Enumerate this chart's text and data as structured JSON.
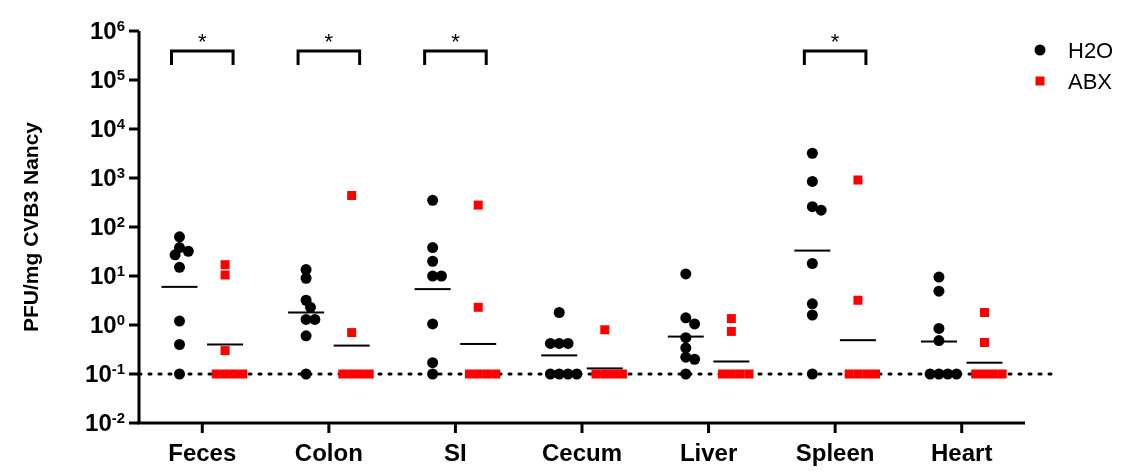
{
  "chart_data": {
    "type": "scatter",
    "ylabel": "PFU/mg CVB3 Nancy",
    "categories": [
      "Feces",
      "Colon",
      "SI",
      "Cecum",
      "Liver",
      "Spleen",
      "Heart"
    ],
    "log": "y",
    "ylim": [
      0.01,
      1000000
    ],
    "yticks": [
      {
        "value": 0.01,
        "label": "10$^{-2}$"
      },
      {
        "value": 0.1,
        "label": "10$^{-1}$"
      },
      {
        "value": 1,
        "label": "10$^{0}$"
      },
      {
        "value": 10,
        "label": "10$^{1}$"
      },
      {
        "value": 100,
        "label": "10$^{2}$"
      },
      {
        "value": 1000,
        "label": "10$^{3}$"
      },
      {
        "value": 10000,
        "label": "10$^{4}$"
      },
      {
        "value": 100000,
        "label": "10$^{5}$"
      },
      {
        "value": 1000000,
        "label": "10$^{6}$"
      }
    ],
    "grid": false,
    "legend": "top right",
    "series": [
      {
        "name": "H2O",
        "color": "#000000",
        "marker": "circle",
        "x": [
          "Feces",
          "Feces",
          "Feces",
          "Feces",
          "Feces",
          "Feces",
          "Feces",
          "Feces",
          "Colon",
          "Colon",
          "Colon",
          "Colon",
          "Colon",
          "Colon",
          "Colon",
          "Colon",
          "SI",
          "SI",
          "SI",
          "SI",
          "SI",
          "SI",
          "SI",
          "SI",
          "Cecum",
          "Cecum",
          "Cecum",
          "Cecum",
          "Cecum",
          "Cecum",
          "Cecum",
          "Cecum",
          "Liver",
          "Liver",
          "Liver",
          "Liver",
          "Liver",
          "Liver",
          "Liver",
          "Liver",
          "Spleen",
          "Spleen",
          "Spleen",
          "Spleen",
          "Spleen",
          "Spleen",
          "Spleen",
          "Spleen",
          "Heart",
          "Heart",
          "Heart",
          "Heart",
          "Heart",
          "Heart",
          "Heart",
          "Heart"
        ],
        "values": [
          63,
          38,
          32,
          27,
          15,
          1.2,
          0.4,
          0.1,
          13.5,
          9,
          3.2,
          2.3,
          1.3,
          1.3,
          0.6,
          0.1,
          350,
          38,
          20,
          10,
          10,
          1.05,
          0.17,
          0.1,
          1.8,
          0.42,
          0.42,
          0.42,
          0.1,
          0.1,
          0.1,
          0.1,
          11,
          1.4,
          1.05,
          0.55,
          0.34,
          0.22,
          0.2,
          0.1,
          3200,
          850,
          260,
          220,
          18,
          2.7,
          1.6,
          0.1,
          9.5,
          4.9,
          0.85,
          0.48,
          0.1,
          0.1,
          0.1,
          0.1
        ]
      },
      {
        "name": "ABX",
        "color": "#ff0000",
        "marker": "square",
        "x": [
          "Feces",
          "Feces",
          "Feces",
          "Feces",
          "Feces",
          "Feces",
          "Feces",
          "Colon",
          "Colon",
          "Colon",
          "Colon",
          "Colon",
          "Colon",
          "SI",
          "SI",
          "SI",
          "SI",
          "SI",
          "SI",
          "Cecum",
          "Cecum",
          "Cecum",
          "Cecum",
          "Cecum",
          "Liver",
          "Liver",
          "Liver",
          "Liver",
          "Liver",
          "Liver",
          "Spleen",
          "Spleen",
          "Spleen",
          "Spleen",
          "Spleen",
          "Spleen",
          "Heart",
          "Heart",
          "Heart",
          "Heart",
          "Heart",
          "Heart"
        ],
        "values": [
          17,
          10.5,
          0.3,
          0.1,
          0.1,
          0.1,
          0.1,
          440,
          0.7,
          0.1,
          0.1,
          0.1,
          0.1,
          280,
          2.3,
          0.1,
          0.1,
          0.1,
          0.1,
          0.8,
          0.1,
          0.1,
          0.1,
          0.1,
          1.35,
          0.74,
          0.1,
          0.1,
          0.1,
          0.1,
          910,
          3.2,
          0.1,
          0.1,
          0.1,
          0.1,
          1.8,
          0.44,
          0.1,
          0.1,
          0.1,
          0.1
        ]
      },
      {
        "type": "box",
        "color": "#000000",
        "boxes": [
          {
            "low": 6,
            "q1": 6,
            "median": 6,
            "q3": 6,
            "high": 6
          },
          {
            "low": 1.8,
            "q1": 1.8,
            "median": 1.8,
            "q3": 1.8,
            "high": 1.8
          },
          {
            "low": 5.4,
            "q1": 5.4,
            "median": 5.4,
            "q3": 5.4,
            "high": 5.4
          },
          {
            "low": 0.24,
            "q1": 0.24,
            "median": 0.24,
            "q3": 0.24,
            "high": 0.24
          },
          {
            "low": 0.58,
            "q1": 0.58,
            "median": 0.58,
            "q3": 0.58,
            "high": 0.58
          },
          {
            "low": 33,
            "q1": 33,
            "median": 33,
            "q3": 33,
            "high": 33
          },
          {
            "low": 0.46,
            "q1": 0.46,
            "median": 0.46,
            "q3": 0.46,
            "high": 0.46
          }
        ]
      },
      {
        "type": "box",
        "color": "#000000",
        "boxes": [
          {
            "low": 0.4,
            "q1": 0.4,
            "median": 0.4,
            "q3": 0.4,
            "high": 0.4
          },
          {
            "low": 0.38,
            "q1": 0.38,
            "median": 0.38,
            "q3": 0.38,
            "high": 0.38
          },
          {
            "low": 0.41,
            "q1": 0.41,
            "median": 0.41,
            "q3": 0.41,
            "high": 0.41
          },
          {
            "low": 0.13,
            "q1": 0.13,
            "median": 0.13,
            "q3": 0.13,
            "high": 0.13
          },
          {
            "low": 0.18,
            "q1": 0.18,
            "median": 0.18,
            "q3": 0.18,
            "high": 0.18
          },
          {
            "low": 0.49,
            "q1": 0.49,
            "median": 0.49,
            "q3": 0.49,
            "high": 0.49
          },
          {
            "low": 0.17,
            "q1": 0.17,
            "median": 0.17,
            "q3": 0.17,
            "high": 0.17
          }
        ]
      }
    ],
    "ref_lines": [
      {
        "axis": "y",
        "value": 0.1,
        "color": "#000000",
        "line_style": "dotted"
      }
    ],
    "annotations": [
      "*",
      "*",
      "*",
      "*"
    ]
  }
}
